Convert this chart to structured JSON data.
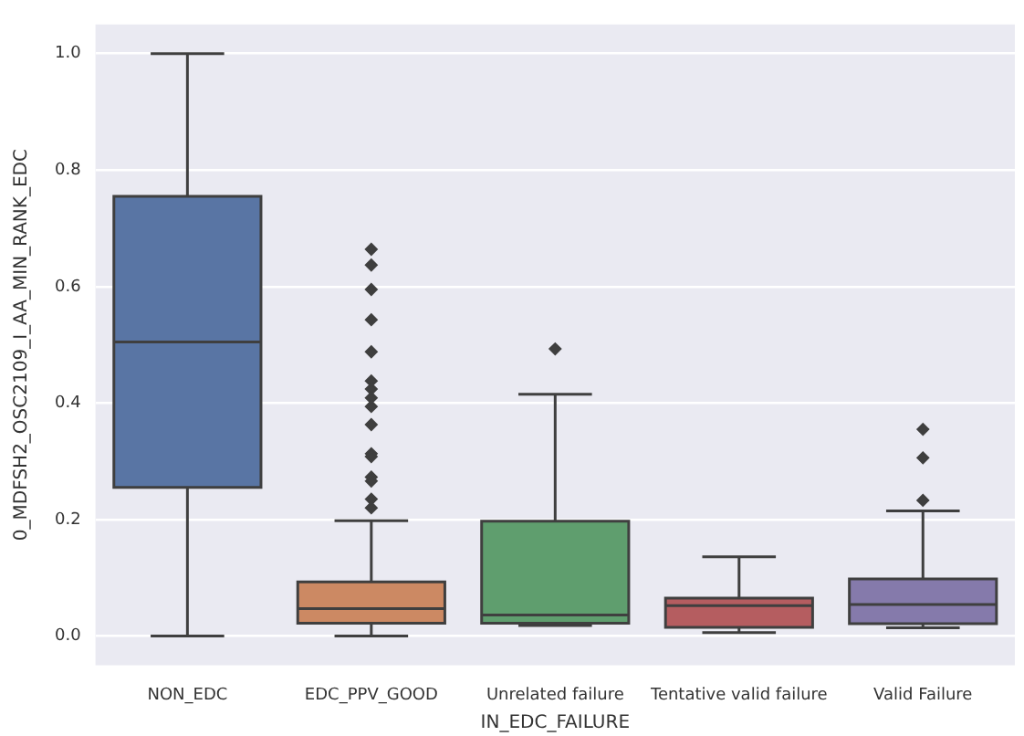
{
  "chart_data": {
    "type": "box",
    "xlabel": "IN_EDC_FAILURE",
    "ylabel": "0_MDFSH2_OSC2109_I_AA_MIN_RANK_EDC",
    "categories": [
      "NON_EDC",
      "EDC_PPV_GOOD",
      "Unrelated failure",
      "Tentative valid failure",
      "Valid Failure"
    ],
    "colors": [
      "#5975a4",
      "#cc8963",
      "#5f9e6e",
      "#b55d60",
      "#857aab"
    ],
    "boxes": [
      {
        "low": 0,
        "q1": 0.255,
        "median": 0.505,
        "q3": 0.755,
        "high": 1.0
      },
      {
        "low": 0,
        "q1": 0.022,
        "median": 0.047,
        "q3": 0.093,
        "high": 0.198,
        "outliers": [
          0.664,
          0.637,
          0.595,
          0.543,
          0.488,
          0.438,
          0.424,
          0.409,
          0.394,
          0.363,
          0.313,
          0.308,
          0.273,
          0.266,
          0.235,
          0.22
        ]
      },
      {
        "low": 0.018,
        "q1": 0.022,
        "median": 0.036,
        "q3": 0.197,
        "high": 0.415,
        "outliers": [
          0.493
        ]
      },
      {
        "low": 0.006,
        "q1": 0.015,
        "median": 0.052,
        "q3": 0.065,
        "high": 0.136
      },
      {
        "low": 0.014,
        "q1": 0.021,
        "median": 0.054,
        "q3": 0.098,
        "high": 0.215,
        "outliers": [
          0.355,
          0.306,
          0.233
        ]
      }
    ],
    "ylim": [
      -0.05,
      1.05
    ],
    "yticks": [
      {
        "value": 0,
        "label": "0.0"
      },
      {
        "value": 0.2,
        "label": "0.2"
      },
      {
        "value": 0.4,
        "label": "0.4"
      },
      {
        "value": 0.6,
        "label": "0.6"
      },
      {
        "value": 0.8,
        "label": "0.8"
      },
      {
        "value": 1.0,
        "label": "1.0"
      }
    ],
    "grid": "y",
    "marker": "diamond"
  }
}
